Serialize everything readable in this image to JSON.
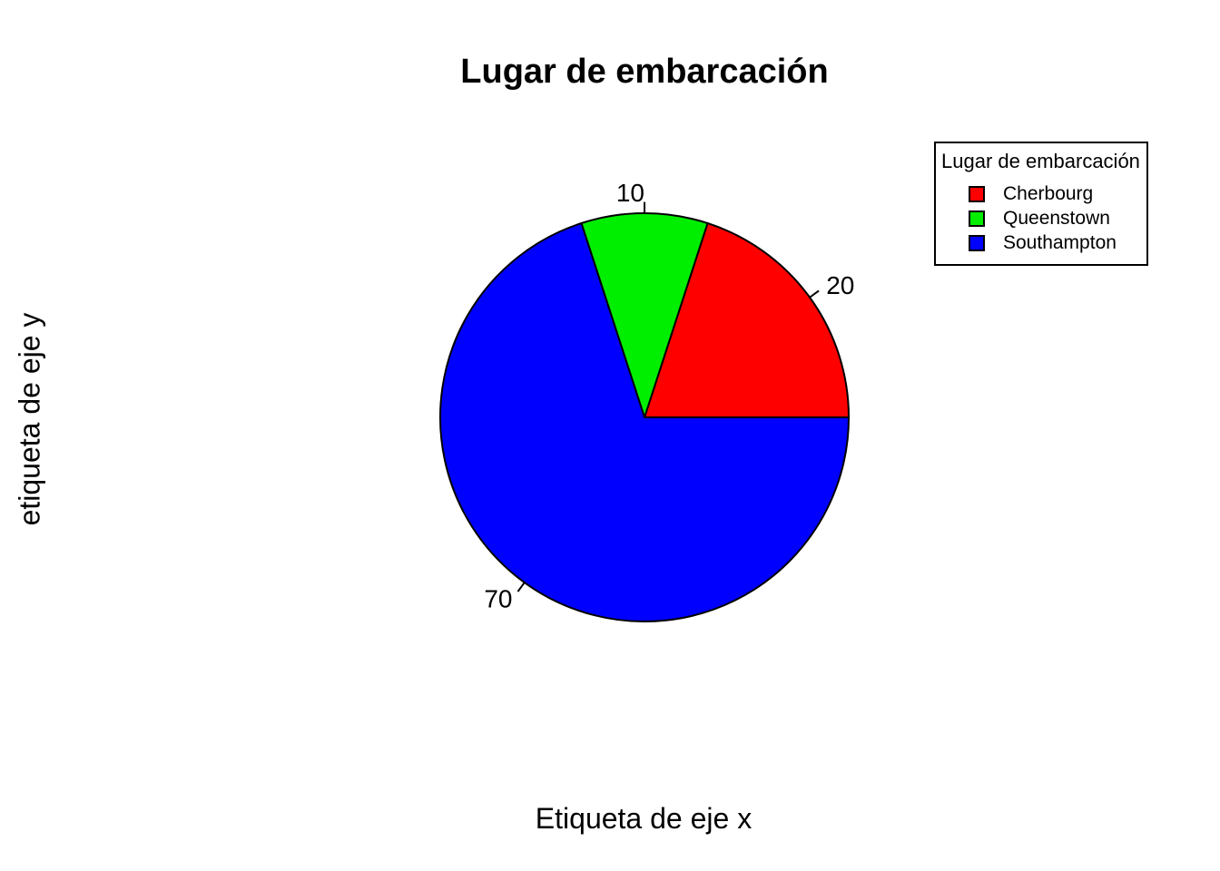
{
  "page": {
    "background": "#ffffff"
  },
  "chart": {
    "title": "Lugar de embarcación",
    "xlabel": "Etiqueta de eje x",
    "ylabel": "etiqueta de eje y",
    "legend": {
      "title": "Lugar de embarcación",
      "items": [
        {
          "label": "Cherbourg",
          "color": "#FF0000"
        },
        {
          "label": "Queenstown",
          "color": "#00EE00"
        },
        {
          "label": "Southampton",
          "color": "#0000FF"
        }
      ]
    }
  },
  "chart_data": {
    "type": "pie",
    "title": "Lugar de embarcación",
    "xlabel": "Etiqueta de eje x",
    "ylabel": "etiqueta de eje y",
    "labels": [
      "Cherbourg",
      "Queenstown",
      "Southampton"
    ],
    "values": [
      20,
      10,
      70
    ],
    "slice_labels": [
      "20",
      "10",
      "70"
    ],
    "colors": [
      "#FF0000",
      "#00EE00",
      "#0000FF"
    ],
    "outline_color": "#000000",
    "start_angle_deg": 0,
    "direction": "counterclockwise",
    "legend_title": "Lugar de embarcación",
    "legend_position": "top-right",
    "legend_entries": [
      "Cherbourg",
      "Queenstown",
      "Southampton"
    ]
  }
}
